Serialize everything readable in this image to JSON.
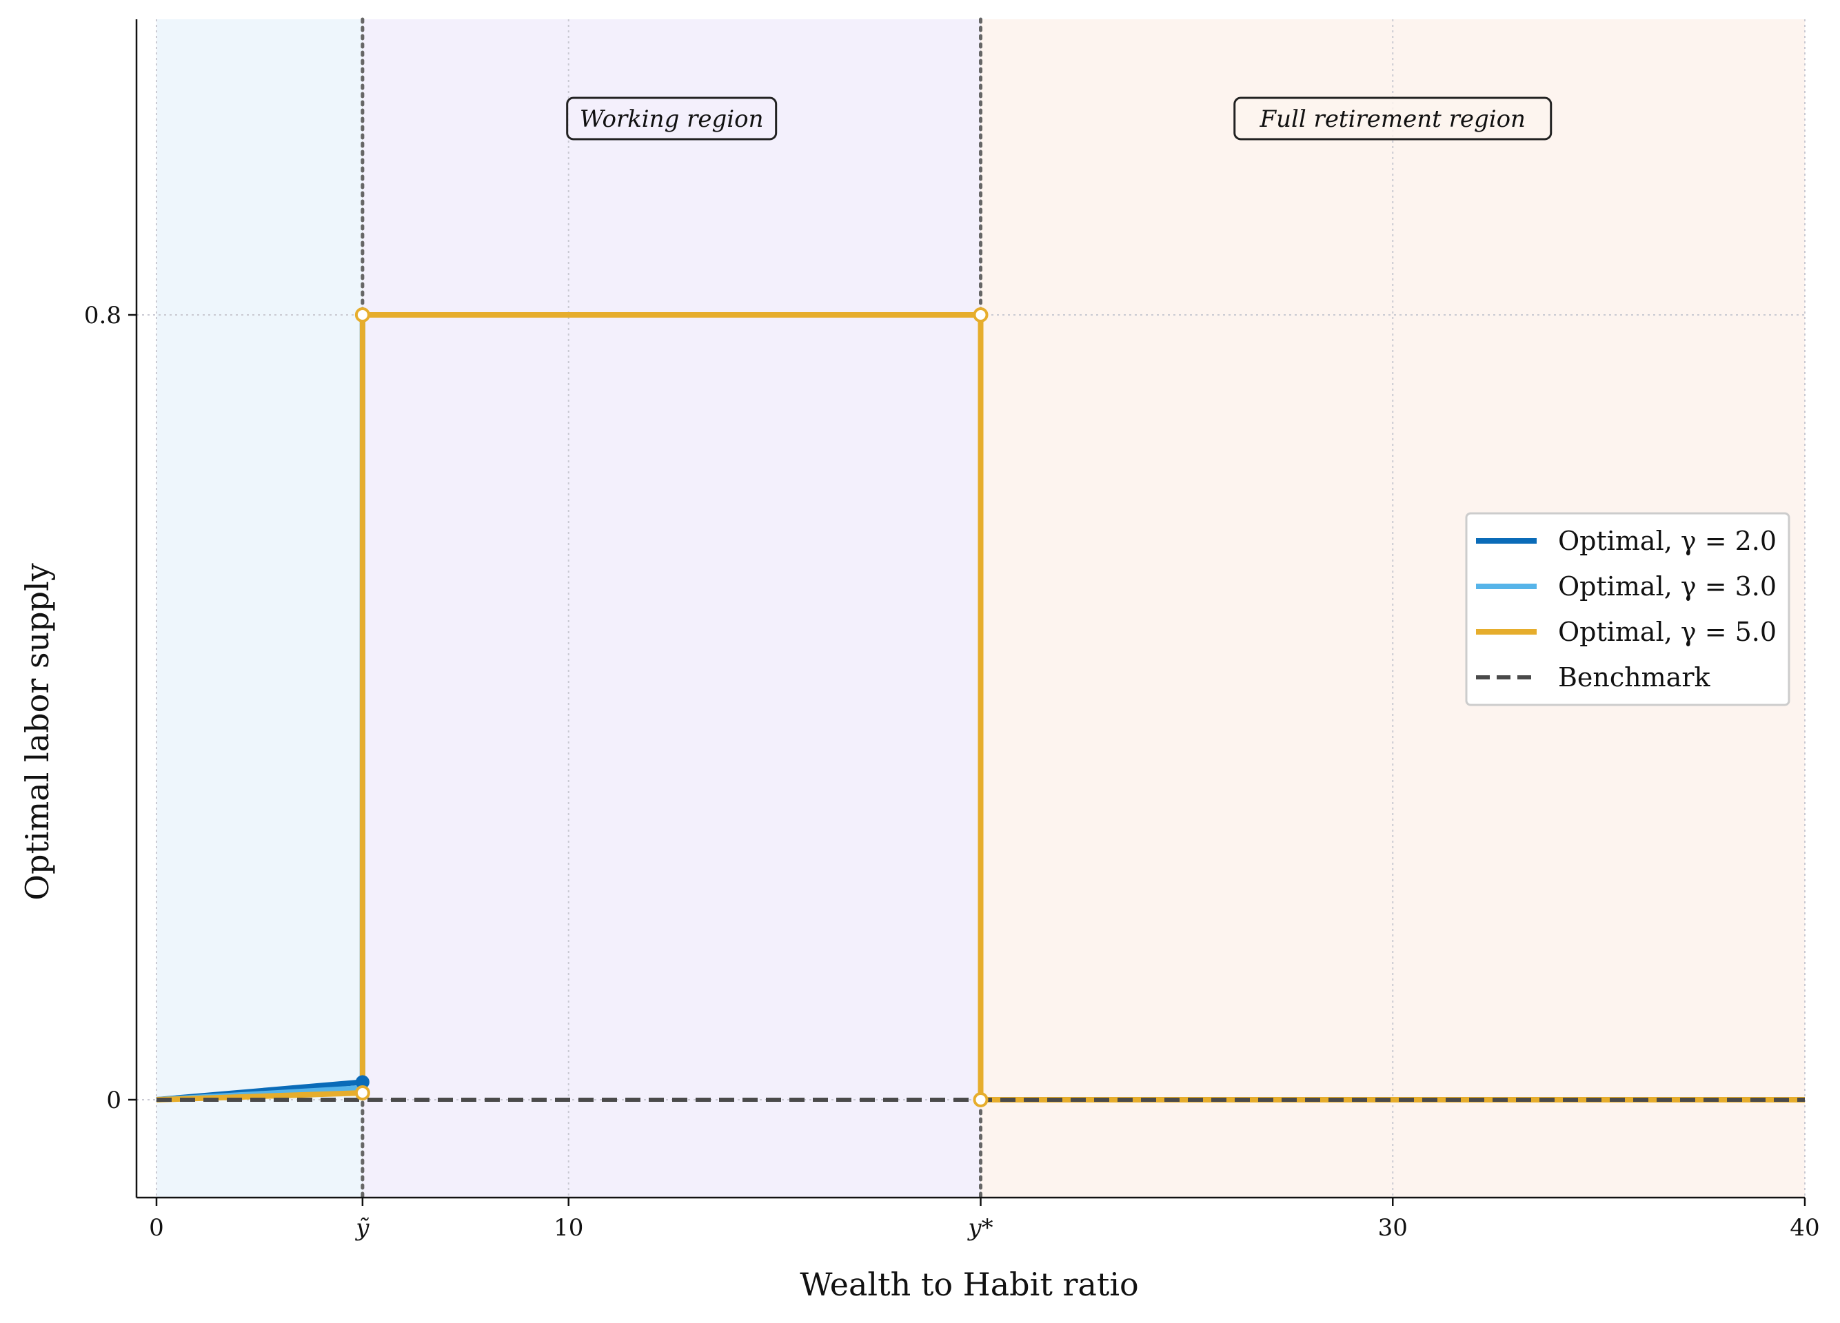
{
  "chart_data": {
    "type": "line",
    "xlabel": "Wealth to Habit ratio",
    "ylabel": "Optimal labor supply",
    "xlim": [
      -0.5,
      40
    ],
    "ylim": [
      -0.1,
      1.0
    ],
    "grid": true,
    "legend_position": "center-right",
    "x_ticks": [
      {
        "value": 0,
        "label": "0"
      },
      {
        "value": 5,
        "label": "ỹ"
      },
      {
        "value": 10,
        "label": "10"
      },
      {
        "value": 20,
        "label": "y*"
      },
      {
        "value": 30,
        "label": "30"
      },
      {
        "value": 40,
        "label": "40"
      }
    ],
    "y_ticks": [
      {
        "value": 0,
        "label": "0"
      },
      {
        "value": 0.8,
        "label": "0.8"
      }
    ],
    "thresholds": [
      {
        "name": "ỹ",
        "x": 5
      },
      {
        "name": "y*",
        "x": 20
      }
    ],
    "regions": [
      {
        "x": [
          0,
          5
        ],
        "color": "#eef6fc",
        "label": ""
      },
      {
        "x": [
          5,
          20
        ],
        "color": "#f3f0fc",
        "label": "Working region"
      },
      {
        "x": [
          20,
          40
        ],
        "color": "#fdf4ef",
        "label": "Full retirement region"
      }
    ],
    "series": [
      {
        "name": "Optimal, γ = 2.0",
        "color": "#0a6bb8",
        "style": "solid",
        "x": [
          0,
          5,
          5,
          20,
          20,
          40
        ],
        "y": [
          0,
          0.018,
          0.8,
          0.8,
          0,
          0
        ]
      },
      {
        "name": "Optimal, γ = 3.0",
        "color": "#56b4e9",
        "style": "solid",
        "x": [
          0,
          5,
          5,
          20,
          20,
          40
        ],
        "y": [
          0,
          0.012,
          0.8,
          0.8,
          0,
          0
        ]
      },
      {
        "name": "Optimal, γ = 5.0",
        "color": "#e6ad2c",
        "style": "solid",
        "x": [
          0,
          5,
          5,
          20,
          20,
          40
        ],
        "y": [
          0,
          0.007,
          0.8,
          0.8,
          0,
          0
        ]
      },
      {
        "name": "Benchmark",
        "color": "#4a4a4a",
        "style": "dashed",
        "x": [
          0,
          40
        ],
        "y": [
          0,
          0
        ]
      }
    ]
  }
}
